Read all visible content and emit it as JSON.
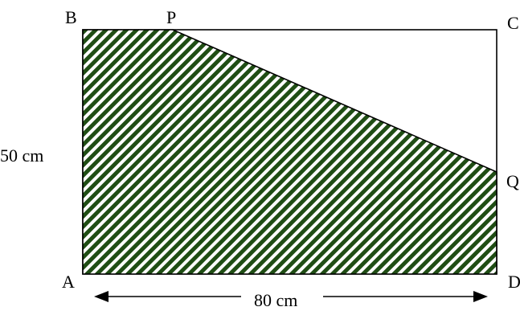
{
  "diagram": {
    "vertices": {
      "A": "A",
      "B": "B",
      "C": "C",
      "D": "D",
      "P": "P",
      "Q": "Q"
    },
    "measurements": {
      "side_ab": "50 cm",
      "side_ad": "80 cm"
    },
    "colors": {
      "stripe": "#1f4d14",
      "outline": "#000000",
      "background": "#ffffff"
    }
  }
}
